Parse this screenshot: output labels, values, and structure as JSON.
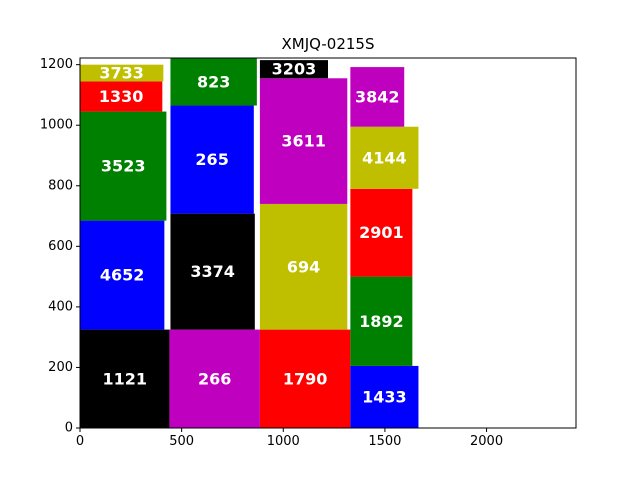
{
  "chart_data": {
    "type": "treemap",
    "title": "XMJQ-0215S",
    "xlim": [
      0,
      2440
    ],
    "ylim": [
      0,
      1222
    ],
    "xticks": [
      0,
      500,
      1000,
      1500,
      2000
    ],
    "yticks": [
      0,
      200,
      400,
      600,
      800,
      1000,
      1200
    ],
    "grid": false,
    "boxes": [
      {
        "label": "1121",
        "x0": 0,
        "x1": 440,
        "y0": 0,
        "y1": 325,
        "color": "#000000"
      },
      {
        "label": "4652",
        "x0": 0,
        "x1": 415,
        "y0": 325,
        "y1": 685,
        "color": "#0000ff"
      },
      {
        "label": "3523",
        "x0": 0,
        "x1": 425,
        "y0": 685,
        "y1": 1045,
        "color": "#008000"
      },
      {
        "label": "1330",
        "x0": 0,
        "x1": 405,
        "y0": 1045,
        "y1": 1145,
        "color": "#ff0000"
      },
      {
        "label": "3733",
        "x0": 0,
        "x1": 410,
        "y0": 1145,
        "y1": 1200,
        "color": "#bfbf00"
      },
      {
        "label": "266",
        "x0": 440,
        "x1": 885,
        "y0": 0,
        "y1": 325,
        "color": "#bf00bf"
      },
      {
        "label": "3374",
        "x0": 445,
        "x1": 860,
        "y0": 325,
        "y1": 708,
        "color": "#000000"
      },
      {
        "label": "265",
        "x0": 445,
        "x1": 855,
        "y0": 708,
        "y1": 1065,
        "color": "#0000ff"
      },
      {
        "label": "823",
        "x0": 445,
        "x1": 870,
        "y0": 1065,
        "y1": 1222,
        "color": "#008000"
      },
      {
        "label": "1790",
        "x0": 885,
        "x1": 1330,
        "y0": 0,
        "y1": 325,
        "color": "#ff0000"
      },
      {
        "label": "694",
        "x0": 885,
        "x1": 1315,
        "y0": 325,
        "y1": 740,
        "color": "#bfbf00"
      },
      {
        "label": "3611",
        "x0": 885,
        "x1": 1315,
        "y0": 740,
        "y1": 1155,
        "color": "#bf00bf"
      },
      {
        "label": "3203",
        "x0": 885,
        "x1": 1220,
        "y0": 1155,
        "y1": 1215,
        "color": "#000000"
      },
      {
        "label": "1433",
        "x0": 1330,
        "x1": 1665,
        "y0": 0,
        "y1": 205,
        "color": "#0000ff"
      },
      {
        "label": "1892",
        "x0": 1330,
        "x1": 1635,
        "y0": 205,
        "y1": 500,
        "color": "#008000"
      },
      {
        "label": "2901",
        "x0": 1330,
        "x1": 1635,
        "y0": 500,
        "y1": 790,
        "color": "#ff0000"
      },
      {
        "label": "4144",
        "x0": 1330,
        "x1": 1665,
        "y0": 790,
        "y1": 995,
        "color": "#bfbf00"
      },
      {
        "label": "3842",
        "x0": 1330,
        "x1": 1595,
        "y0": 995,
        "y1": 1192,
        "color": "#bf00bf"
      }
    ]
  }
}
